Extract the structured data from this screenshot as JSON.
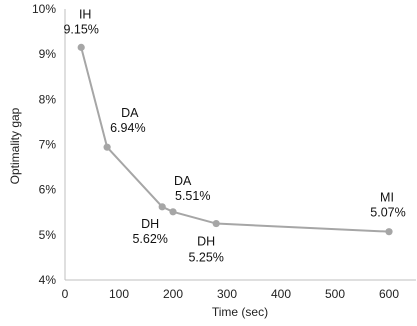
{
  "chart_data": {
    "type": "line",
    "title": "",
    "xlabel": "Time (sec)",
    "ylabel": "Optimality gap",
    "xlim": [
      0,
      650
    ],
    "ylim": [
      4,
      10
    ],
    "x_ticks": [
      0,
      100,
      200,
      300,
      400,
      500,
      600
    ],
    "x_tick_labels": [
      "0",
      "100",
      "200",
      "300",
      "400",
      "500",
      "600"
    ],
    "y_ticks": [
      4,
      5,
      6,
      7,
      8,
      9,
      10
    ],
    "y_tick_labels": [
      "4%",
      "5%",
      "6%",
      "7%",
      "8%",
      "9%",
      "10%"
    ],
    "grid": false,
    "line_color": "#a6a6a6",
    "marker_color": "#a6a6a6",
    "series": [
      {
        "points": [
          {
            "x": 30,
            "y": 9.15,
            "method": "IH",
            "value_label": "9.15%"
          },
          {
            "x": 78,
            "y": 6.94,
            "method": "DA",
            "value_label": "6.94%"
          },
          {
            "x": 180,
            "y": 5.62,
            "method": "DH",
            "value_label": "5.62%"
          },
          {
            "x": 200,
            "y": 5.51,
            "method": "DA",
            "value_label": "5.51%"
          },
          {
            "x": 280,
            "y": 5.25,
            "method": "DH",
            "value_label": "5.25%"
          },
          {
            "x": 600,
            "y": 5.07,
            "method": "MI",
            "value_label": "5.07%"
          }
        ]
      }
    ]
  }
}
